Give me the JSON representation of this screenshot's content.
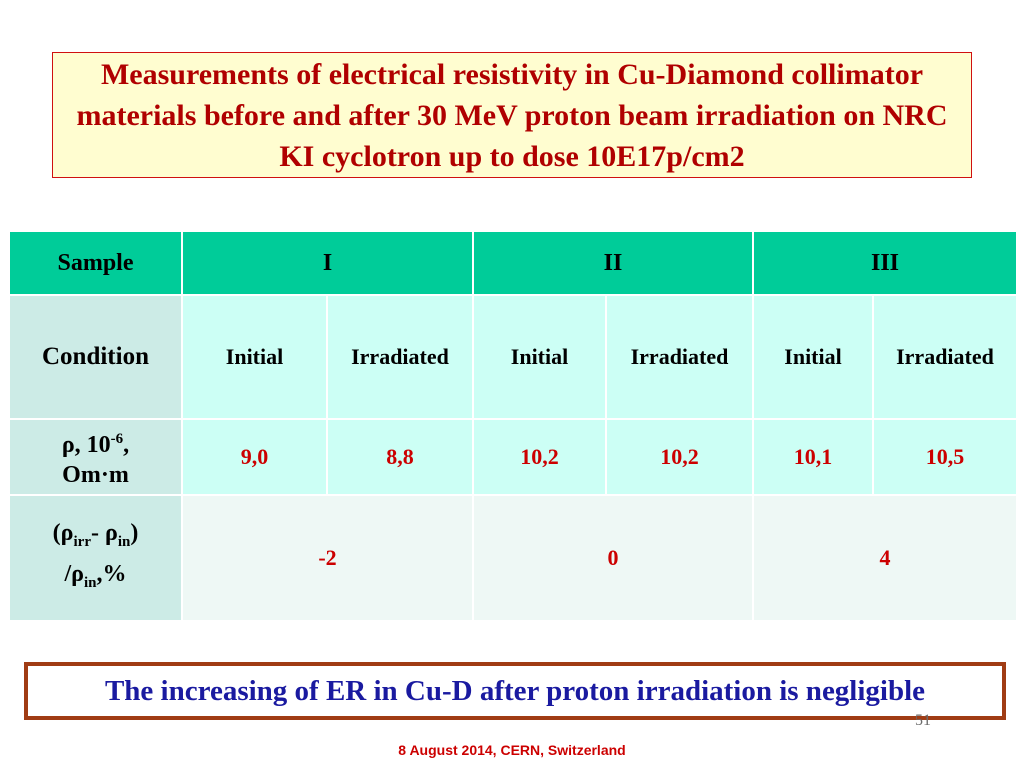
{
  "title": "Measurements of electrical resistivity in Cu-Diamond collimator materials before and after 30 MeV proton beam irradiation on NRC KI cyclotron up to dose 10E17p/cm2",
  "table": {
    "sample_label": "Sample",
    "samples": [
      "I",
      "II",
      "III"
    ],
    "condition_label": "Condition",
    "conditions": [
      "Initial",
      "Irradiated",
      "Initial",
      "Irradiated",
      "Initial",
      "Irradiated"
    ],
    "rho_label": {
      "symbol": "ρ, 10",
      "exp": "-6",
      "tail": ",",
      "unit": "Om·m"
    },
    "rho_values": [
      "9,0",
      "8,8",
      "10,2",
      "10,2",
      "10,1",
      "10,5"
    ],
    "delta_label": {
      "p1": "(ρ",
      "s1": "irr",
      "p2": "- ρ",
      "s2": "in",
      "p3": ")",
      "p4": "/ρ",
      "s3": "in",
      "p5": ",%"
    },
    "delta_values": [
      "-2",
      "0",
      "4"
    ]
  },
  "conclusion": "The increasing of ER in Cu-D after proton irradiation is negligible",
  "slide_number": "51",
  "footer": "8 August 2014, CERN, Switzerland"
}
